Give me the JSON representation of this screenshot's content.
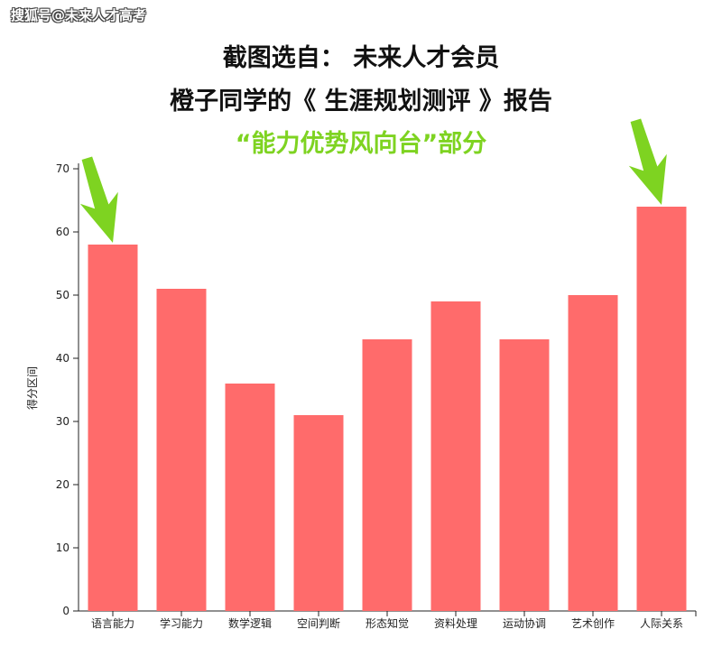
{
  "header": {
    "watermark": "搜狐号@未来人才高考",
    "title_line1": "截图选自： 未来人才会员",
    "title_line2": "橙子同学的《 生涯规划测评 》报告",
    "title_line3": "“能力优势风向台”部分"
  },
  "colors": {
    "bar": "#ff6b6b",
    "accent_green": "#7ed321",
    "title_text": "#111111"
  },
  "chart_data": {
    "type": "bar",
    "categories": [
      "语言能力",
      "学习能力",
      "数学逻辑",
      "空间判断",
      "形态知觉",
      "资料处理",
      "运动协调",
      "艺术创作",
      "人际关系"
    ],
    "values": [
      58,
      51,
      36,
      31,
      43,
      49,
      43,
      50,
      64
    ],
    "xlabel": "",
    "ylabel": "得分区间",
    "ylim": [
      0,
      70
    ],
    "yticks": [
      0,
      10,
      20,
      30,
      40,
      50,
      60,
      70
    ],
    "grid": false,
    "highlighted": [
      "语言能力",
      "人际关系"
    ]
  }
}
